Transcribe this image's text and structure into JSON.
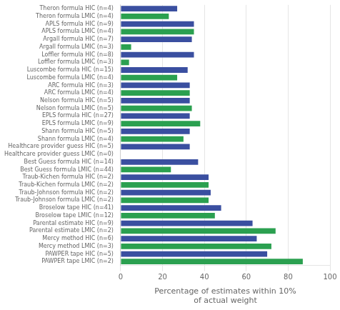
{
  "chart_data": {
    "type": "bar",
    "orientation": "horizontal",
    "categories": [
      "Theron formula HIC (n=4)",
      "Theron formula LMIC (n=4)",
      "APLS formula HIC (n=9)",
      "APLS formula LMIC (n=4)",
      "Argall formula HIC (n=7)",
      "Argall formula LMIC (n=3)",
      "Loffler formula HIC (n=8)",
      "Loffler formula LMIC (n=3)",
      "Luscombe formula HIC (n=15)",
      "Luscombe formula LMIC (n=4)",
      "ARC formula HIC (n=3)",
      "ARC formula LMIC (n=4)",
      "Nelson formula HIC (n=5)",
      "Nelson formula LMIC (n=5)",
      "EPLS formula HIC (n=27)",
      "EPLS formula LMIC (n=9)",
      "Shann formula HIC (n=5)",
      "Shann formula LMIC (n=4)",
      "Healthcare provider guess HIC (n=5)",
      "Healthcare provider guess LMIC (n=0)",
      "Best Guess formula HIC (n=14)",
      "Best Guess formula LMIC (n=44)",
      "Traub-Kichen formula HIC (n=2)",
      "Traub-Kichen formula LMIC (n=2)",
      "Traub-Johnson formula HIC (n=2)",
      "Traub-Johnson formula LMIC (n=2)",
      "Broselow tape HIC (n=41)",
      "Broselow tape LMIC (n=12)",
      "Parental estimate HIC (n=9)",
      "Parental estimate LMIC (n=2)",
      "Mercy method HIC (n=6)",
      "Mercy method LMIC (n=3)",
      "PAWPER tape HIC (n=5)",
      "PAWPER tape LMIC (n=2)"
    ],
    "values": [
      27,
      23,
      35,
      35,
      34,
      5,
      35,
      4,
      32,
      27,
      33,
      33,
      33,
      34,
      33,
      38,
      33,
      30,
      33,
      0,
      37,
      24,
      42,
      42,
      43,
      42,
      48,
      45,
      63,
      74,
      65,
      72,
      70,
      87
    ],
    "colors": [
      "#3a4fa0",
      "#2ba050",
      "#3a4fa0",
      "#2ba050",
      "#3a4fa0",
      "#2ba050",
      "#3a4fa0",
      "#2ba050",
      "#3a4fa0",
      "#2ba050",
      "#3a4fa0",
      "#2ba050",
      "#3a4fa0",
      "#2ba050",
      "#3a4fa0",
      "#2ba050",
      "#3a4fa0",
      "#2ba050",
      "#3a4fa0",
      "#2ba050",
      "#3a4fa0",
      "#2ba050",
      "#3a4fa0",
      "#2ba050",
      "#3a4fa0",
      "#2ba050",
      "#3a4fa0",
      "#2ba050",
      "#3a4fa0",
      "#2ba050",
      "#3a4fa0",
      "#2ba050",
      "#3a4fa0",
      "#2ba050"
    ],
    "xlabel": "Percentage of estimates within 10%\nof actual weight",
    "xlim": [
      0,
      100
    ],
    "xticks": [
      0,
      20,
      40,
      60,
      80,
      100
    ],
    "grid": true
  }
}
